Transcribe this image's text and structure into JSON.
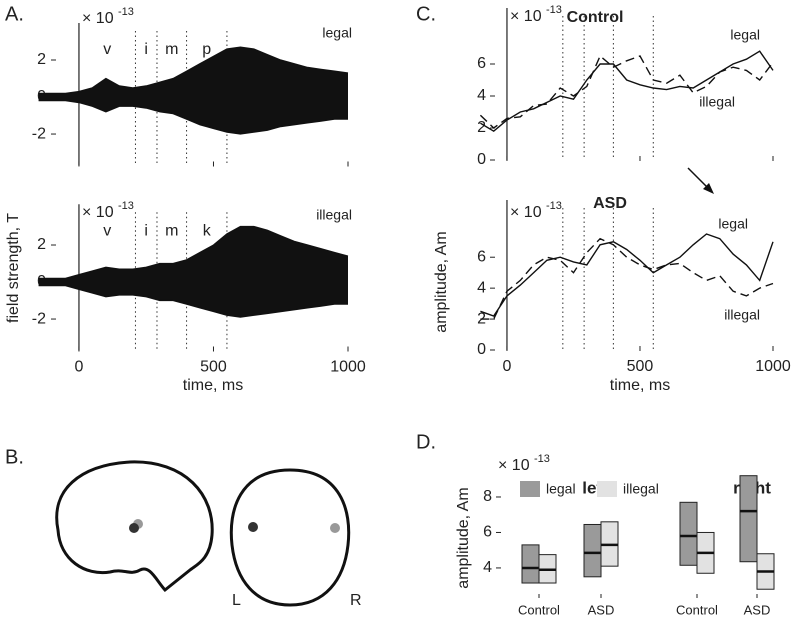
{
  "chart_data": [
    {
      "type": "band",
      "panel": "A.",
      "scale": {
        "base": "× 10",
        "exponent": "-13"
      },
      "annotations": [
        "legal"
      ],
      "segments": [
        "v",
        "i",
        "m",
        "p"
      ],
      "dividers": [
        210,
        290,
        400,
        550
      ],
      "x": [
        -150,
        -100,
        -50,
        0,
        50,
        100,
        150,
        200,
        250,
        300,
        350,
        400,
        450,
        500,
        550,
        600,
        650,
        700,
        750,
        800,
        850,
        900,
        950,
        1000
      ],
      "series": [
        {
          "color": "#111111",
          "values": [
            0.2,
            0.2,
            0.2,
            0.3,
            0.5,
            1.0,
            0.6,
            0.5,
            0.6,
            0.8,
            1.0,
            1.4,
            1.8,
            2.2,
            2.6,
            2.7,
            2.6,
            2.3,
            2.0,
            1.8,
            1.6,
            1.5,
            1.4,
            1.3
          ]
        },
        {
          "color": "#111111",
          "values": [
            -0.2,
            -0.2,
            -0.2,
            -0.3,
            -0.5,
            -0.8,
            -0.5,
            -0.5,
            -0.6,
            -0.8,
            -0.9,
            -1.2,
            -1.5,
            -1.7,
            -1.9,
            -2.0,
            -1.9,
            -1.8,
            -1.6,
            -1.5,
            -1.4,
            -1.3,
            -1.2,
            -1.2
          ]
        }
      ],
      "xlim": [
        -150,
        1000
      ],
      "xticks": [
        0,
        500,
        1000
      ],
      "ylim": [
        -3.7,
        4
      ],
      "yticks": [
        2,
        0,
        -2
      ]
    },
    {
      "type": "band",
      "scale": {
        "base": "× 10",
        "exponent": "-13"
      },
      "annotations": [
        "illegal"
      ],
      "segments": [
        "v",
        "i",
        "m",
        "k"
      ],
      "dividers": [
        210,
        290,
        400,
        550
      ],
      "ylabel": "field strength, T",
      "xlabel": "time, ms",
      "x": [
        -150,
        -100,
        -50,
        0,
        50,
        100,
        150,
        200,
        250,
        300,
        350,
        400,
        450,
        500,
        550,
        600,
        650,
        700,
        750,
        800,
        850,
        900,
        950,
        1000
      ],
      "series": [
        {
          "color": "#111111",
          "values": [
            0.2,
            0.2,
            0.2,
            0.4,
            0.6,
            0.8,
            0.7,
            0.7,
            0.8,
            1.0,
            1.0,
            1.2,
            1.6,
            2.0,
            2.6,
            3.0,
            3.0,
            2.8,
            2.5,
            2.2,
            2.0,
            1.8,
            1.6,
            1.4
          ]
        },
        {
          "color": "#111111",
          "values": [
            -0.2,
            -0.2,
            -0.2,
            -0.4,
            -0.6,
            -0.8,
            -0.7,
            -0.7,
            -0.8,
            -1.0,
            -1.0,
            -1.2,
            -1.4,
            -1.6,
            -1.8,
            -1.9,
            -1.8,
            -1.7,
            -1.6,
            -1.5,
            -1.4,
            -1.3,
            -1.2,
            -1.2
          ]
        }
      ],
      "xlim": [
        -150,
        1000
      ],
      "xticks": [
        0,
        500,
        1000
      ],
      "ylim": [
        -3.7,
        4.2
      ],
      "yticks": [
        2,
        0,
        -2
      ]
    },
    {
      "type": "line",
      "panel": "C.",
      "title": "Control",
      "scale": {
        "base": "× 10",
        "exponent": "-13"
      },
      "annotations": [
        "legal",
        "illegal"
      ],
      "dividers": [
        210,
        290,
        400,
        550
      ],
      "x": [
        -100,
        -50,
        0,
        50,
        100,
        150,
        200,
        250,
        300,
        350,
        400,
        450,
        500,
        550,
        600,
        650,
        700,
        750,
        800,
        850,
        900,
        950,
        1000
      ],
      "series": [
        {
          "color": "#111111",
          "dash": false,
          "values": [
            2.3,
            1.8,
            2.5,
            3.0,
            3.2,
            3.6,
            4.0,
            3.8,
            5.0,
            6.0,
            6.0,
            5.0,
            4.7,
            4.5,
            4.4,
            4.6,
            4.5,
            5.0,
            5.5,
            6.0,
            6.3,
            6.8,
            5.6
          ]
        },
        {
          "color": "#111111",
          "dash": true,
          "values": [
            2.8,
            2.0,
            2.6,
            2.7,
            3.4,
            3.5,
            4.5,
            4.0,
            4.6,
            6.5,
            5.8,
            6.2,
            6.5,
            5.0,
            4.8,
            5.3,
            4.2,
            4.6,
            5.5,
            5.8,
            5.6,
            5.0,
            6.1
          ]
        }
      ],
      "xlim": [
        -110,
        1000
      ],
      "xticks": [
        0,
        500,
        1000
      ],
      "ylim": [
        0,
        9.5
      ],
      "yticks": [
        0,
        2,
        4,
        6
      ]
    },
    {
      "type": "line",
      "title": "ASD",
      "scale": {
        "base": "× 10",
        "exponent": "-13"
      },
      "annotations": [
        "legal",
        "illegal"
      ],
      "dividers": [
        210,
        290,
        400,
        550
      ],
      "ylabel": "amplitude, Am",
      "xlabel": "time, ms",
      "x": [
        -100,
        -50,
        0,
        50,
        100,
        150,
        200,
        250,
        300,
        350,
        400,
        450,
        500,
        550,
        600,
        650,
        700,
        750,
        800,
        850,
        900,
        950,
        1000
      ],
      "series": [
        {
          "color": "#111111",
          "dash": false,
          "values": [
            2.5,
            2.2,
            3.5,
            4.2,
            5.0,
            5.8,
            6.0,
            5.7,
            5.5,
            6.8,
            7.0,
            6.5,
            5.8,
            5.0,
            5.5,
            6.0,
            6.8,
            7.5,
            7.2,
            6.2,
            5.5,
            4.5,
            7.0
          ]
        },
        {
          "color": "#111111",
          "dash": true,
          "values": [
            2.0,
            2.0,
            3.8,
            4.5,
            5.5,
            6.0,
            5.8,
            5.0,
            6.3,
            7.2,
            6.8,
            6.0,
            5.5,
            5.2,
            5.5,
            5.6,
            5.0,
            4.5,
            4.8,
            3.8,
            3.5,
            4.0,
            4.3
          ]
        }
      ],
      "xlim": [
        -110,
        1000
      ],
      "xticks": [
        0,
        500,
        1000
      ],
      "ylim": [
        0,
        9.7
      ],
      "yticks": [
        0,
        2,
        4,
        6
      ]
    },
    {
      "type": "box",
      "panel": "D.",
      "scale": {
        "base": "× 10",
        "exponent": "-13"
      },
      "ylabel": "amplitude, Am",
      "groups": [
        "left",
        "right"
      ],
      "categories": [
        "Control",
        "ASD",
        "Control",
        "ASD"
      ],
      "series": [
        {
          "name": "legal",
          "color": "#9a9a9a",
          "low": [
            3.15,
            3.5,
            4.15,
            4.35
          ],
          "median": [
            4.0,
            4.85,
            5.8,
            7.2
          ],
          "high": [
            5.3,
            6.45,
            7.7,
            9.2
          ]
        },
        {
          "name": "illegal",
          "color": "#e2e2e2",
          "low": [
            3.15,
            4.1,
            3.7,
            2.8
          ],
          "median": [
            3.9,
            5.3,
            4.85,
            3.8
          ],
          "high": [
            4.75,
            6.6,
            6.0,
            4.8
          ]
        }
      ],
      "ylim": [
        2.7,
        9.6
      ],
      "yticks": [
        4,
        6,
        8
      ]
    }
  ],
  "panel_b": {
    "panel": "B.",
    "left_label": "L",
    "right_label": "R"
  }
}
